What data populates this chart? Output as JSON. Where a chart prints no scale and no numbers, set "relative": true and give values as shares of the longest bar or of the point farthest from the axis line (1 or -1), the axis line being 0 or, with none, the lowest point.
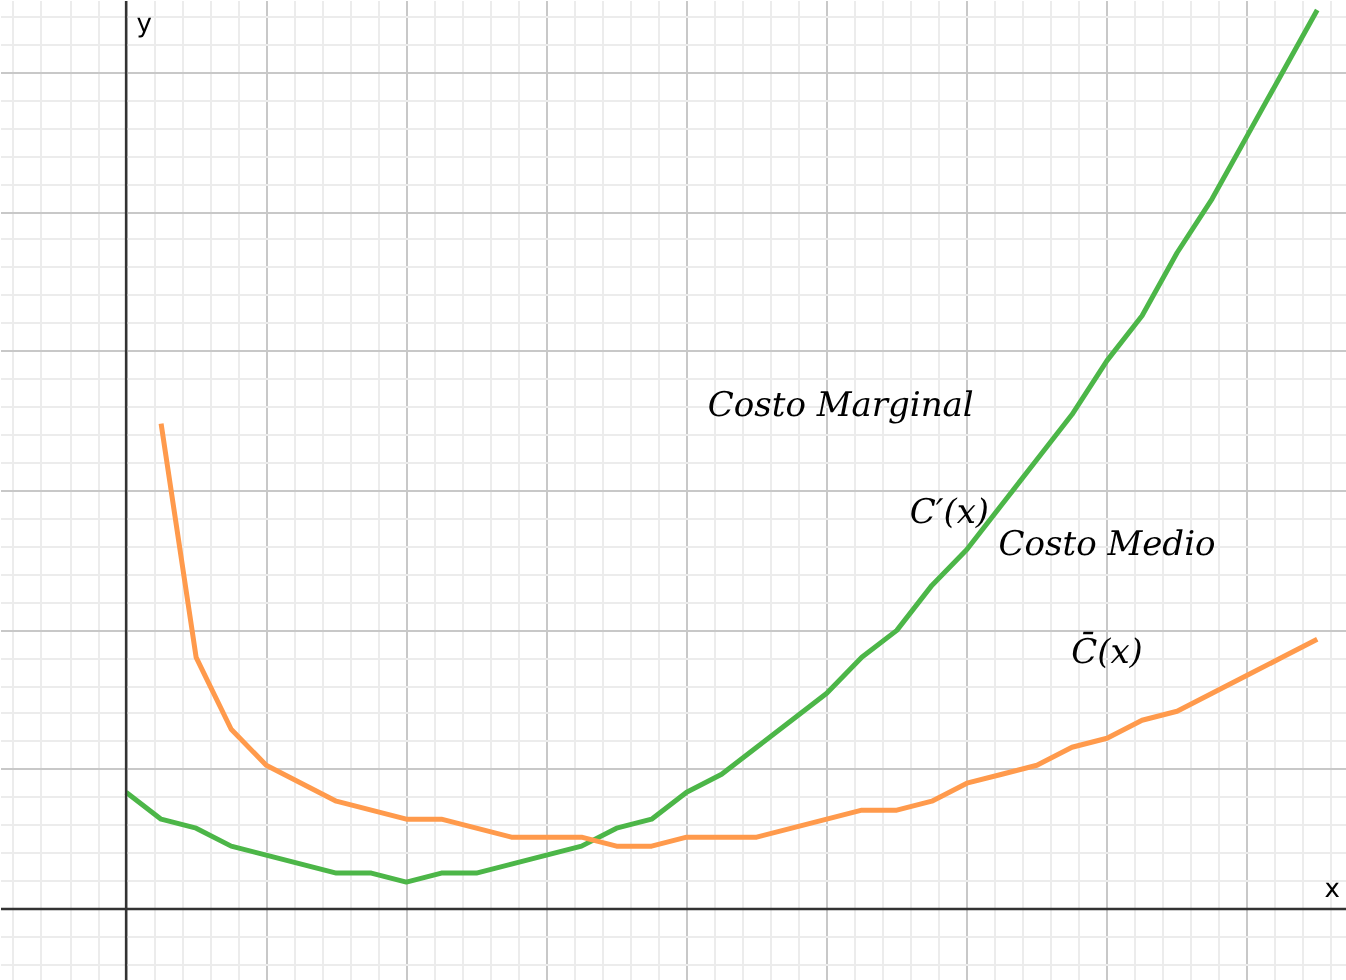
{
  "chart_data": {
    "type": "line",
    "relative": true,
    "xlabel": "x",
    "ylabel": "y",
    "grid": true,
    "tick_labels": false,
    "categories": [
      null,
      null,
      null,
      null,
      null,
      null,
      null,
      null,
      null,
      null,
      null,
      null,
      null,
      null,
      null,
      null,
      null,
      null,
      null,
      null,
      null,
      null,
      null,
      null,
      null,
      null,
      null,
      null,
      null,
      null,
      null,
      null,
      null,
      null,
      null
    ],
    "series": [
      {
        "color": "#4cb648",
        "values": [
          0.13,
          0.1,
          0.09,
          0.07,
          0.06,
          0.05,
          0.04,
          0.04,
          0.03,
          0.04,
          0.04,
          0.05,
          0.06,
          0.07,
          0.09,
          0.1,
          0.13,
          0.15,
          0.18,
          0.21,
          0.24,
          0.28,
          0.31,
          0.36,
          0.4,
          0.45,
          0.5,
          0.55,
          0.61,
          0.66,
          0.73,
          0.79,
          0.86,
          0.93,
          1.0
        ]
      },
      {
        "color": "#ff9a4c",
        "values": [
          null,
          0.54,
          0.28,
          0.2,
          0.16,
          0.14,
          0.12,
          0.11,
          0.1,
          0.1,
          0.09,
          0.08,
          0.08,
          0.08,
          0.07,
          0.07,
          0.08,
          0.08,
          0.08,
          0.09,
          0.1,
          0.11,
          0.11,
          0.12,
          0.14,
          0.15,
          0.16,
          0.18,
          0.19,
          0.21,
          0.22,
          0.24,
          0.26,
          0.28,
          0.3
        ]
      }
    ],
    "annotations": [
      "Costo Marginal",
      "C′(x)",
      "Costo Medio",
      "C̄(x)"
    ]
  }
}
